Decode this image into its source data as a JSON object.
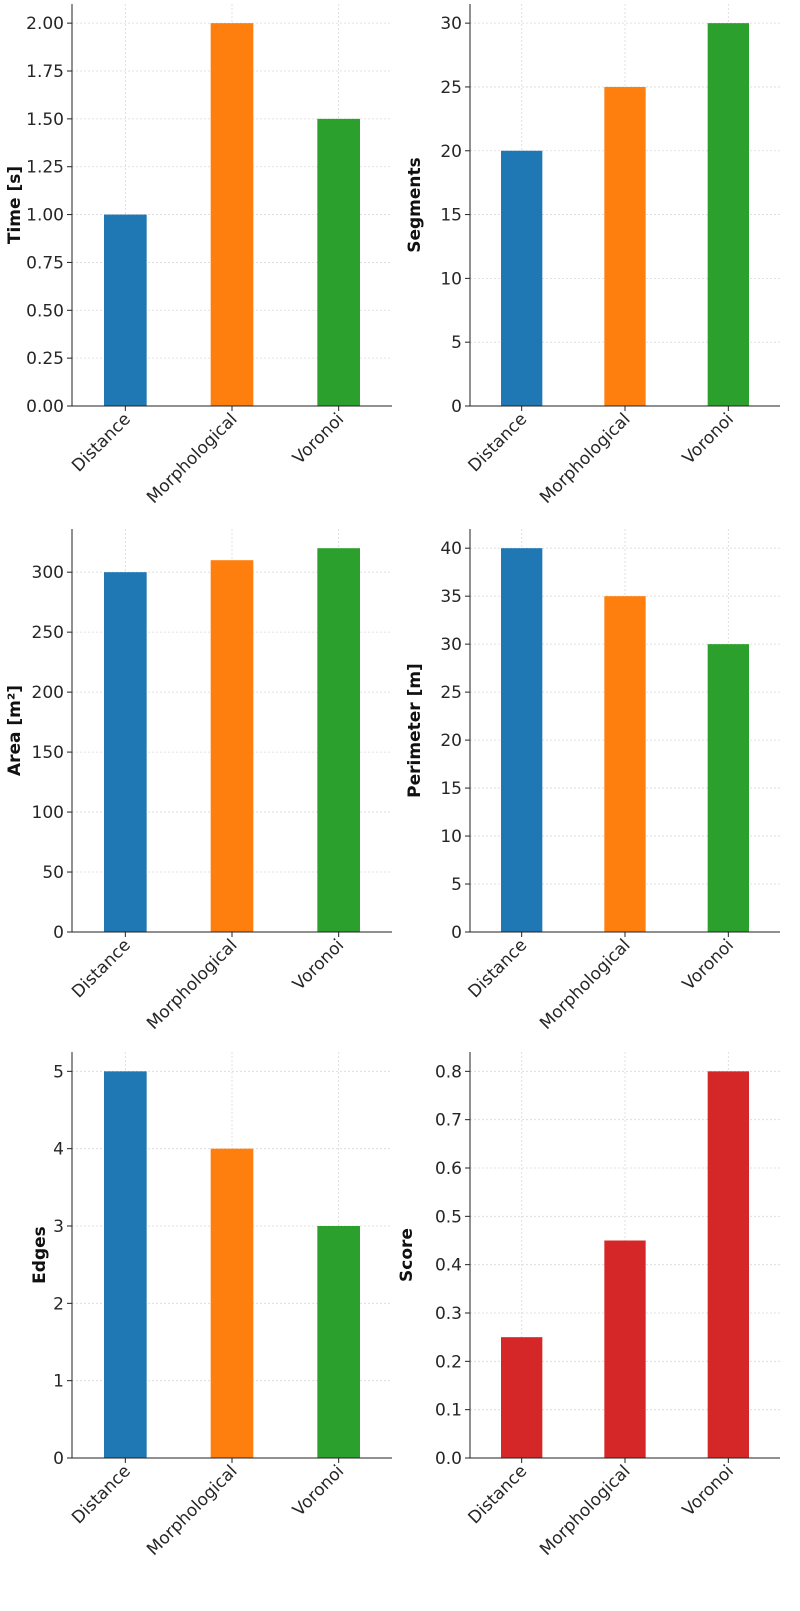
{
  "chart_data": [
    {
      "type": "bar",
      "title": "",
      "xlabel": "",
      "ylabel": "Time [s]",
      "categories": [
        "Distance",
        "Morphological",
        "Voronoi"
      ],
      "values": [
        1.0,
        2.0,
        1.5
      ],
      "colors": [
        "#1f77b4",
        "#ff7f0e",
        "#2ca02c"
      ],
      "ylim": [
        0,
        2.1
      ],
      "yticks": [
        0.0,
        0.25,
        0.5,
        0.75,
        1.0,
        1.25,
        1.5,
        1.75,
        2.0
      ],
      "ytick_labels": [
        "0.00",
        "0.25",
        "0.50",
        "0.75",
        "1.00",
        "1.25",
        "1.50",
        "1.75",
        "2.00"
      ],
      "grid": true
    },
    {
      "type": "bar",
      "title": "",
      "xlabel": "",
      "ylabel": "Segments",
      "categories": [
        "Distance",
        "Morphological",
        "Voronoi"
      ],
      "values": [
        20,
        25,
        30
      ],
      "colors": [
        "#1f77b4",
        "#ff7f0e",
        "#2ca02c"
      ],
      "ylim": [
        0,
        31.5
      ],
      "yticks": [
        0,
        5,
        10,
        15,
        20,
        25,
        30
      ],
      "ytick_labels": [
        "0",
        "5",
        "10",
        "15",
        "20",
        "25",
        "30"
      ],
      "grid": true
    },
    {
      "type": "bar",
      "title": "",
      "xlabel": "",
      "ylabel": "Area [m²]",
      "categories": [
        "Distance",
        "Morphological",
        "Voronoi"
      ],
      "values": [
        300,
        310,
        320
      ],
      "colors": [
        "#1f77b4",
        "#ff7f0e",
        "#2ca02c"
      ],
      "ylim": [
        0,
        336
      ],
      "yticks": [
        0,
        50,
        100,
        150,
        200,
        250,
        300
      ],
      "ytick_labels": [
        "0",
        "50",
        "100",
        "150",
        "200",
        "250",
        "300"
      ],
      "grid": true
    },
    {
      "type": "bar",
      "title": "",
      "xlabel": "",
      "ylabel": "Perimeter [m]",
      "categories": [
        "Distance",
        "Morphological",
        "Voronoi"
      ],
      "values": [
        40,
        35,
        30
      ],
      "colors": [
        "#1f77b4",
        "#ff7f0e",
        "#2ca02c"
      ],
      "ylim": [
        0,
        42
      ],
      "yticks": [
        0,
        5,
        10,
        15,
        20,
        25,
        30,
        35,
        40
      ],
      "ytick_labels": [
        "0",
        "5",
        "10",
        "15",
        "20",
        "25",
        "30",
        "35",
        "40"
      ],
      "grid": true
    },
    {
      "type": "bar",
      "title": "",
      "xlabel": "",
      "ylabel": "Edges",
      "categories": [
        "Distance",
        "Morphological",
        "Voronoi"
      ],
      "values": [
        5,
        4,
        3
      ],
      "colors": [
        "#1f77b4",
        "#ff7f0e",
        "#2ca02c"
      ],
      "ylim": [
        0,
        5.25
      ],
      "yticks": [
        0,
        1,
        2,
        3,
        4,
        5
      ],
      "ytick_labels": [
        "0",
        "1",
        "2",
        "3",
        "4",
        "5"
      ],
      "grid": true
    },
    {
      "type": "bar",
      "title": "",
      "xlabel": "",
      "ylabel": "Score",
      "categories": [
        "Distance",
        "Morphological",
        "Voronoi"
      ],
      "values": [
        0.25,
        0.45,
        0.8
      ],
      "colors": [
        "#d62728",
        "#d62728",
        "#d62728"
      ],
      "ylim": [
        0,
        0.84
      ],
      "yticks": [
        0.0,
        0.1,
        0.2,
        0.3,
        0.4,
        0.5,
        0.6,
        0.7,
        0.8
      ],
      "ytick_labels": [
        "0.0",
        "0.1",
        "0.2",
        "0.3",
        "0.4",
        "0.5",
        "0.6",
        "0.7",
        "0.8"
      ],
      "grid": true
    }
  ]
}
